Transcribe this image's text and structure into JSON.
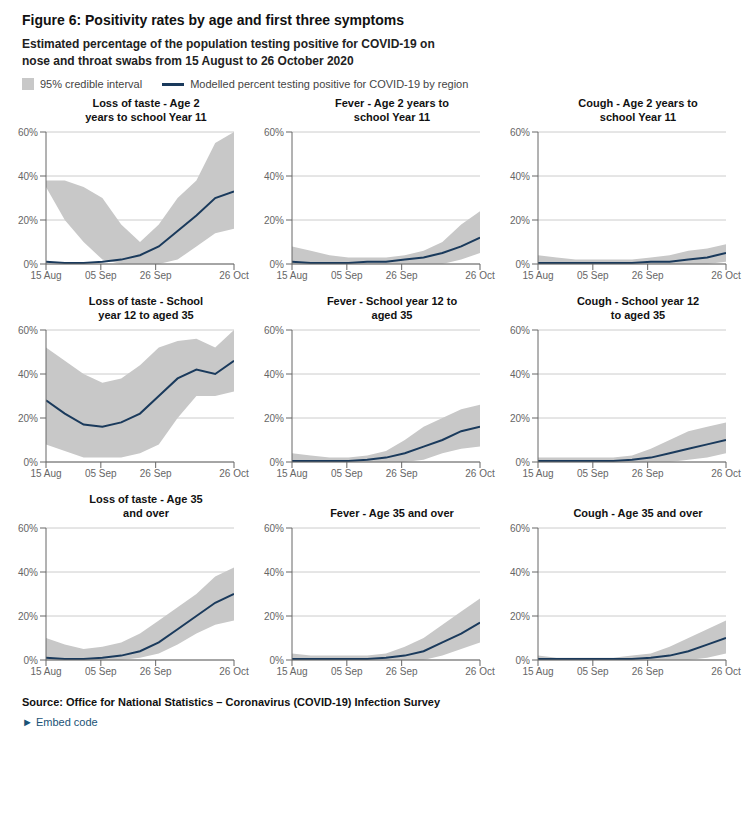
{
  "title": "Figure 6: Positivity rates by age and first three symptoms",
  "subtitle": [
    "Estimated percentage of the population testing positive for COVID-19 on",
    "nose and throat swabs from 15 August to 26 October 2020"
  ],
  "legend": "top",
  "annotations": [
    "Source: Office for National Statistics – Coronavirus (COVID-19) Infection Survey",
    "►  Embed code"
  ],
  "chart_data": [
    {
      "type": "line",
      "title": "Loss of taste - Age 2\nyears to school Year 11",
      "x": [
        0,
        7.2,
        14.4,
        21.6,
        28.8,
        36,
        43.2,
        50.4,
        57.6,
        64.8,
        72
      ],
      "xlim": [
        0,
        72
      ],
      "xticks": [
        {
          "value": 0,
          "label": "15 Aug"
        },
        {
          "value": 21,
          "label": "05 Sep"
        },
        {
          "value": 42,
          "label": "26 Sep"
        },
        {
          "value": 72,
          "label": "26 Oct"
        }
      ],
      "ylim": [
        0,
        0.6
      ],
      "yticks": [
        {
          "value": 0.0,
          "label": "0%"
        },
        {
          "value": 0.2,
          "label": "20%"
        },
        {
          "value": 0.4,
          "label": "40%"
        },
        {
          "value": 0.6,
          "label": "60%"
        }
      ],
      "grid": true,
      "series": [
        {
          "name": "95% credible interval",
          "type": "band",
          "color": "#c8c8c8",
          "low": [
            0.35,
            0.2,
            0.1,
            0.02,
            0.0,
            0.0,
            0.0,
            0.02,
            0.08,
            0.14,
            0.16
          ],
          "high": [
            0.38,
            0.38,
            0.35,
            0.3,
            0.18,
            0.1,
            0.18,
            0.3,
            0.38,
            0.55,
            0.6
          ]
        },
        {
          "name": "Modelled percent testing positive for COVID-19 by region",
          "type": "line",
          "color": "#1a3a5c",
          "values": [
            0.01,
            0.005,
            0.005,
            0.01,
            0.02,
            0.04,
            0.08,
            0.15,
            0.22,
            0.3,
            0.33
          ]
        }
      ]
    },
    {
      "type": "line",
      "title": "Fever - Age 2 years to\nschool Year 11",
      "x": [
        0,
        7.2,
        14.4,
        21.6,
        28.8,
        36,
        43.2,
        50.4,
        57.6,
        64.8,
        72
      ],
      "xlim": [
        0,
        72
      ],
      "xticks": [
        {
          "value": 0,
          "label": "15 Aug"
        },
        {
          "value": 21,
          "label": "05 Sep"
        },
        {
          "value": 42,
          "label": "26 Sep"
        },
        {
          "value": 72,
          "label": "26 Oct"
        }
      ],
      "ylim": [
        0,
        0.6
      ],
      "yticks": [
        {
          "value": 0.0,
          "label": "0%"
        },
        {
          "value": 0.2,
          "label": "20%"
        },
        {
          "value": 0.4,
          "label": "40%"
        },
        {
          "value": 0.6,
          "label": "60%"
        }
      ],
      "grid": true,
      "series": [
        {
          "name": "95% credible interval",
          "type": "band",
          "color": "#c8c8c8",
          "low": [
            0.0,
            0.0,
            0.0,
            0.0,
            0.0,
            0.0,
            0.0,
            0.0,
            0.0,
            0.02,
            0.05
          ],
          "high": [
            0.08,
            0.06,
            0.04,
            0.03,
            0.03,
            0.03,
            0.04,
            0.06,
            0.1,
            0.18,
            0.24
          ]
        },
        {
          "name": "Modelled percent testing positive for COVID-19 by region",
          "type": "line",
          "color": "#1a3a5c",
          "values": [
            0.01,
            0.005,
            0.005,
            0.005,
            0.01,
            0.01,
            0.02,
            0.03,
            0.05,
            0.08,
            0.12
          ]
        }
      ]
    },
    {
      "type": "line",
      "title": "Cough - Age 2 years to\nschool Year 11",
      "x": [
        0,
        7.2,
        14.4,
        21.6,
        28.8,
        36,
        43.2,
        50.4,
        57.6,
        64.8,
        72
      ],
      "xlim": [
        0,
        72
      ],
      "xticks": [
        {
          "value": 0,
          "label": "15 Aug"
        },
        {
          "value": 21,
          "label": "05 Sep"
        },
        {
          "value": 42,
          "label": "26 Sep"
        },
        {
          "value": 72,
          "label": "26 Oct"
        }
      ],
      "ylim": [
        0,
        0.6
      ],
      "yticks": [
        {
          "value": 0.0,
          "label": "0%"
        },
        {
          "value": 0.2,
          "label": "20%"
        },
        {
          "value": 0.4,
          "label": "40%"
        },
        {
          "value": 0.6,
          "label": "60%"
        }
      ],
      "grid": true,
      "series": [
        {
          "name": "95% credible interval",
          "type": "band",
          "color": "#c8c8c8",
          "low": [
            0.0,
            0.0,
            0.0,
            0.0,
            0.0,
            0.0,
            0.0,
            0.0,
            0.0,
            0.0,
            0.01
          ],
          "high": [
            0.04,
            0.03,
            0.02,
            0.02,
            0.02,
            0.02,
            0.03,
            0.04,
            0.06,
            0.07,
            0.09
          ]
        },
        {
          "name": "Modelled percent testing positive for COVID-19 by region",
          "type": "line",
          "color": "#1a3a5c",
          "values": [
            0.005,
            0.005,
            0.005,
            0.005,
            0.005,
            0.005,
            0.01,
            0.01,
            0.02,
            0.03,
            0.05
          ]
        }
      ]
    },
    {
      "type": "line",
      "title": "Loss of taste - School\nyear 12 to aged 35",
      "x": [
        0,
        7.2,
        14.4,
        21.6,
        28.8,
        36,
        43.2,
        50.4,
        57.6,
        64.8,
        72
      ],
      "xlim": [
        0,
        72
      ],
      "xticks": [
        {
          "value": 0,
          "label": "15 Aug"
        },
        {
          "value": 21,
          "label": "05 Sep"
        },
        {
          "value": 42,
          "label": "26 Sep"
        },
        {
          "value": 72,
          "label": "26 Oct"
        }
      ],
      "ylim": [
        0,
        0.6
      ],
      "yticks": [
        {
          "value": 0.0,
          "label": "0%"
        },
        {
          "value": 0.2,
          "label": "20%"
        },
        {
          "value": 0.4,
          "label": "40%"
        },
        {
          "value": 0.6,
          "label": "60%"
        }
      ],
      "grid": true,
      "series": [
        {
          "name": "95% credible interval",
          "type": "band",
          "color": "#c8c8c8",
          "low": [
            0.08,
            0.05,
            0.02,
            0.02,
            0.02,
            0.04,
            0.08,
            0.2,
            0.3,
            0.3,
            0.32
          ],
          "high": [
            0.52,
            0.46,
            0.4,
            0.36,
            0.38,
            0.44,
            0.52,
            0.55,
            0.56,
            0.52,
            0.6
          ]
        },
        {
          "name": "Modelled percent testing positive for COVID-19 by region",
          "type": "line",
          "color": "#1a3a5c",
          "values": [
            0.28,
            0.22,
            0.17,
            0.16,
            0.18,
            0.22,
            0.3,
            0.38,
            0.42,
            0.4,
            0.46
          ]
        }
      ]
    },
    {
      "type": "line",
      "title": "Fever - School year 12 to\naged 35",
      "x": [
        0,
        7.2,
        14.4,
        21.6,
        28.8,
        36,
        43.2,
        50.4,
        57.6,
        64.8,
        72
      ],
      "xlim": [
        0,
        72
      ],
      "xticks": [
        {
          "value": 0,
          "label": "15 Aug"
        },
        {
          "value": 21,
          "label": "05 Sep"
        },
        {
          "value": 42,
          "label": "26 Sep"
        },
        {
          "value": 72,
          "label": "26 Oct"
        }
      ],
      "ylim": [
        0,
        0.6
      ],
      "yticks": [
        {
          "value": 0.0,
          "label": "0%"
        },
        {
          "value": 0.2,
          "label": "20%"
        },
        {
          "value": 0.4,
          "label": "40%"
        },
        {
          "value": 0.6,
          "label": "60%"
        }
      ],
      "grid": true,
      "series": [
        {
          "name": "95% credible interval",
          "type": "band",
          "color": "#c8c8c8",
          "low": [
            0.0,
            0.0,
            0.0,
            0.0,
            0.0,
            0.0,
            0.0,
            0.01,
            0.04,
            0.06,
            0.07
          ],
          "high": [
            0.04,
            0.03,
            0.02,
            0.02,
            0.03,
            0.05,
            0.1,
            0.16,
            0.2,
            0.24,
            0.26
          ]
        },
        {
          "name": "Modelled percent testing positive for COVID-19 by region",
          "type": "line",
          "color": "#1a3a5c",
          "values": [
            0.005,
            0.005,
            0.005,
            0.005,
            0.01,
            0.02,
            0.04,
            0.07,
            0.1,
            0.14,
            0.16
          ]
        }
      ]
    },
    {
      "type": "line",
      "title": "Cough - School year 12\nto aged 35",
      "x": [
        0,
        7.2,
        14.4,
        21.6,
        28.8,
        36,
        43.2,
        50.4,
        57.6,
        64.8,
        72
      ],
      "xlim": [
        0,
        72
      ],
      "xticks": [
        {
          "value": 0,
          "label": "15 Aug"
        },
        {
          "value": 21,
          "label": "05 Sep"
        },
        {
          "value": 42,
          "label": "26 Sep"
        },
        {
          "value": 72,
          "label": "26 Oct"
        }
      ],
      "ylim": [
        0,
        0.6
      ],
      "yticks": [
        {
          "value": 0.0,
          "label": "0%"
        },
        {
          "value": 0.2,
          "label": "20%"
        },
        {
          "value": 0.4,
          "label": "40%"
        },
        {
          "value": 0.6,
          "label": "60%"
        }
      ],
      "grid": true,
      "series": [
        {
          "name": "95% credible interval",
          "type": "band",
          "color": "#c8c8c8",
          "low": [
            0.0,
            0.0,
            0.0,
            0.0,
            0.0,
            0.0,
            0.0,
            0.0,
            0.01,
            0.02,
            0.04
          ],
          "high": [
            0.02,
            0.02,
            0.02,
            0.02,
            0.02,
            0.03,
            0.06,
            0.1,
            0.14,
            0.16,
            0.18
          ]
        },
        {
          "name": "Modelled percent testing positive for COVID-19 by region",
          "type": "line",
          "color": "#1a3a5c",
          "values": [
            0.005,
            0.005,
            0.005,
            0.005,
            0.005,
            0.01,
            0.02,
            0.04,
            0.06,
            0.08,
            0.1
          ]
        }
      ]
    },
    {
      "type": "line",
      "title": "Loss of taste - Age 35\nand over",
      "x": [
        0,
        7.2,
        14.4,
        21.6,
        28.8,
        36,
        43.2,
        50.4,
        57.6,
        64.8,
        72
      ],
      "xlim": [
        0,
        72
      ],
      "xticks": [
        {
          "value": 0,
          "label": "15 Aug"
        },
        {
          "value": 21,
          "label": "05 Sep"
        },
        {
          "value": 42,
          "label": "26 Sep"
        },
        {
          "value": 72,
          "label": "26 Oct"
        }
      ],
      "ylim": [
        0,
        0.6
      ],
      "yticks": [
        {
          "value": 0.0,
          "label": "0%"
        },
        {
          "value": 0.2,
          "label": "20%"
        },
        {
          "value": 0.4,
          "label": "40%"
        },
        {
          "value": 0.6,
          "label": "60%"
        }
      ],
      "grid": true,
      "series": [
        {
          "name": "95% credible interval",
          "type": "band",
          "color": "#c8c8c8",
          "low": [
            0.0,
            0.0,
            0.0,
            0.0,
            0.0,
            0.01,
            0.03,
            0.07,
            0.12,
            0.16,
            0.18
          ],
          "high": [
            0.1,
            0.07,
            0.05,
            0.06,
            0.08,
            0.12,
            0.18,
            0.24,
            0.3,
            0.38,
            0.42
          ]
        },
        {
          "name": "Modelled percent testing positive for COVID-19 by region",
          "type": "line",
          "color": "#1a3a5c",
          "values": [
            0.01,
            0.005,
            0.005,
            0.01,
            0.02,
            0.04,
            0.08,
            0.14,
            0.2,
            0.26,
            0.3
          ]
        }
      ]
    },
    {
      "type": "line",
      "title": "Fever - Age 35 and over",
      "x": [
        0,
        7.2,
        14.4,
        21.6,
        28.8,
        36,
        43.2,
        50.4,
        57.6,
        64.8,
        72
      ],
      "xlim": [
        0,
        72
      ],
      "xticks": [
        {
          "value": 0,
          "label": "15 Aug"
        },
        {
          "value": 21,
          "label": "05 Sep"
        },
        {
          "value": 42,
          "label": "26 Sep"
        },
        {
          "value": 72,
          "label": "26 Oct"
        }
      ],
      "ylim": [
        0,
        0.6
      ],
      "yticks": [
        {
          "value": 0.0,
          "label": "0%"
        },
        {
          "value": 0.2,
          "label": "20%"
        },
        {
          "value": 0.4,
          "label": "40%"
        },
        {
          "value": 0.6,
          "label": "60%"
        }
      ],
      "grid": true,
      "series": [
        {
          "name": "95% credible interval",
          "type": "band",
          "color": "#c8c8c8",
          "low": [
            0.0,
            0.0,
            0.0,
            0.0,
            0.0,
            0.0,
            0.0,
            0.0,
            0.02,
            0.05,
            0.08
          ],
          "high": [
            0.03,
            0.02,
            0.02,
            0.02,
            0.02,
            0.03,
            0.06,
            0.1,
            0.16,
            0.22,
            0.28
          ]
        },
        {
          "name": "Modelled percent testing positive for COVID-19 by region",
          "type": "line",
          "color": "#1a3a5c",
          "values": [
            0.005,
            0.005,
            0.005,
            0.005,
            0.005,
            0.01,
            0.02,
            0.04,
            0.08,
            0.12,
            0.17
          ]
        }
      ]
    },
    {
      "type": "line",
      "title": "Cough - Age 35 and over",
      "x": [
        0,
        7.2,
        14.4,
        21.6,
        28.8,
        36,
        43.2,
        50.4,
        57.6,
        64.8,
        72
      ],
      "xlim": [
        0,
        72
      ],
      "xticks": [
        {
          "value": 0,
          "label": "15 Aug"
        },
        {
          "value": 21,
          "label": "05 Sep"
        },
        {
          "value": 42,
          "label": "26 Sep"
        },
        {
          "value": 72,
          "label": "26 Oct"
        }
      ],
      "ylim": [
        0,
        0.6
      ],
      "yticks": [
        {
          "value": 0.0,
          "label": "0%"
        },
        {
          "value": 0.2,
          "label": "20%"
        },
        {
          "value": 0.4,
          "label": "40%"
        },
        {
          "value": 0.6,
          "label": "60%"
        }
      ],
      "grid": true,
      "series": [
        {
          "name": "95% credible interval",
          "type": "band",
          "color": "#c8c8c8",
          "low": [
            0.0,
            0.0,
            0.0,
            0.0,
            0.0,
            0.0,
            0.0,
            0.0,
            0.0,
            0.01,
            0.03
          ],
          "high": [
            0.02,
            0.01,
            0.01,
            0.01,
            0.01,
            0.02,
            0.03,
            0.06,
            0.1,
            0.14,
            0.18
          ]
        },
        {
          "name": "Modelled percent testing positive for COVID-19 by region",
          "type": "line",
          "color": "#1a3a5c",
          "values": [
            0.005,
            0.005,
            0.005,
            0.005,
            0.005,
            0.005,
            0.01,
            0.02,
            0.04,
            0.07,
            0.1
          ]
        }
      ]
    }
  ]
}
